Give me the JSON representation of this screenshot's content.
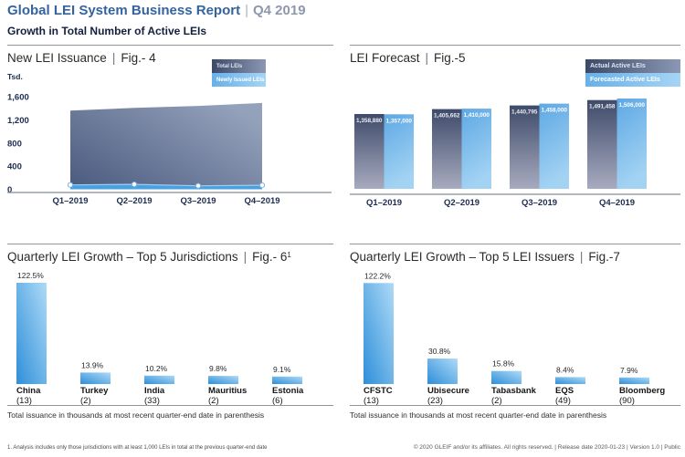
{
  "header": {
    "title": "Global LEI System Business Report",
    "separator": "|",
    "period": "Q4 2019",
    "subtitle": "Growth in Total Number of Active LEIs"
  },
  "colors": {
    "title_blue": "#35639e",
    "navy_text": "#1c2d52",
    "area_dark": "#4a5a7e",
    "area_light": "#94a1bb",
    "band_blue": "#4aa1e2",
    "bar_dark_top": "#3f4b6a",
    "bar_dark_bottom": "#a7abbf",
    "bar_light_top": "#5ea8e4",
    "bar_light_bottom": "#a3d3f3",
    "growth_bar_saturated": "#2e8fd9",
    "growth_bar_light": "#aedaf7"
  },
  "chart_data": [
    {
      "id": "fig4",
      "type": "area",
      "title": "New LEI Issuance",
      "fig": "Fig.- 4",
      "unit_label": "Tsd.",
      "categories": [
        "Q1–2019",
        "Q2–2019",
        "Q3–2019",
        "Q4–2019"
      ],
      "series": [
        {
          "name": "Total LEIs",
          "values": [
            1359,
            1406,
            1441,
            1491
          ]
        },
        {
          "name": "Newly Issued LEIs",
          "values": [
            75,
            85,
            60,
            70
          ]
        }
      ],
      "ylim": [
        0,
        1600
      ],
      "yticks": [
        0,
        400,
        800,
        1200,
        1600
      ],
      "grid": false,
      "legend_position": "top-right-inside"
    },
    {
      "id": "fig5",
      "type": "bar",
      "title": "LEI Forecast",
      "fig": "Fig.-5",
      "categories": [
        "Q1–2019",
        "Q2–2019",
        "Q3–2019",
        "Q4–2019"
      ],
      "series": [
        {
          "name": "Actual Active LEIs",
          "values": [
            1358880,
            1405662,
            1440795,
            1491458
          ]
        },
        {
          "name": "Forecasted Active LEIs",
          "values": [
            1357000,
            1410000,
            1458000,
            1506000
          ]
        }
      ],
      "data_labels": true,
      "baseline_truncated": true,
      "legend_position": "top-right-inside"
    },
    {
      "id": "fig6",
      "type": "bar",
      "title": "Quarterly LEI Growth – Top 5 Jurisdictions",
      "fig": "Fig.- 6",
      "fig_superscript": "1",
      "categories": [
        "China",
        "Turkey",
        "India",
        "Mauritius",
        "Estonia"
      ],
      "counts": [
        "(13)",
        "(2)",
        "(33)",
        "(2)",
        "(6)"
      ],
      "values": [
        122.5,
        13.9,
        10.2,
        9.8,
        9.1
      ],
      "unit": "%",
      "caption": "Total issuance in thousands at most recent quarter-end date in parenthesis"
    },
    {
      "id": "fig7",
      "type": "bar",
      "title": "Quarterly LEI Growth – Top 5 LEI Issuers",
      "fig": "Fig.-7",
      "categories": [
        "CFSTC",
        "Ubisecure",
        "Tabasbank",
        "EQS",
        "Bloomberg"
      ],
      "counts": [
        "(13)",
        "(23)",
        "(2)",
        "(49)",
        "(90)"
      ],
      "values": [
        122.2,
        30.8,
        15.8,
        8.4,
        7.9
      ],
      "unit": "%",
      "caption": "Total issuance in thousands at most recent quarter-end date in parenthesis"
    }
  ],
  "footer": {
    "footnote": "1. Analysis includes only those jurisdictions with at least 1,000 LEIs in total at the previous quarter-end date",
    "legal": "© 2020 GLEIF and/or its affiliates. All rights reserved.  |  Release date 2020-01-23  |  Version 1.0  |  Public"
  }
}
